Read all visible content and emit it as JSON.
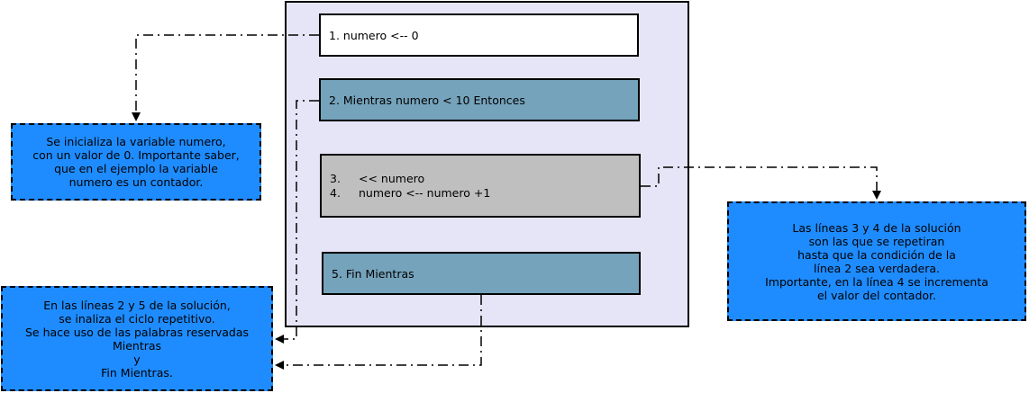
{
  "steps": {
    "step1": "1. numero <-- 0",
    "step2": "2. Mientras numero < 10 Entonces",
    "step3_num": "3.",
    "step3_text": "<< numero",
    "step4_num": "4.",
    "step4_text": "numero <-- numero +1",
    "step5": "5. Fin Mientras"
  },
  "notes": {
    "note1": "Se inicializa la variable numero,\ncon un valor de 0. Importante saber,\nque en el ejemplo la variable\nnumero es un contador.",
    "note2": "Las líneas 3 y 4 de la solución\nson las que se repetiran\nhasta que la condición de la\nlínea 2 sea verdadera.\nImportante, en la línea 4 se incrementa\nel valor del contador.",
    "note3": "En las líneas 2 y 5 de la solución,\nse inaliza el ciclo repetitivo.\nSe hace uso de las palabras reservadas\nMientras\ny\nFin Mientras."
  },
  "colors": {
    "container": "#e5e5f7",
    "step_blue": "#75a3bb",
    "step_gray": "#bfbfbf",
    "note_blue": "#1e8cff"
  }
}
